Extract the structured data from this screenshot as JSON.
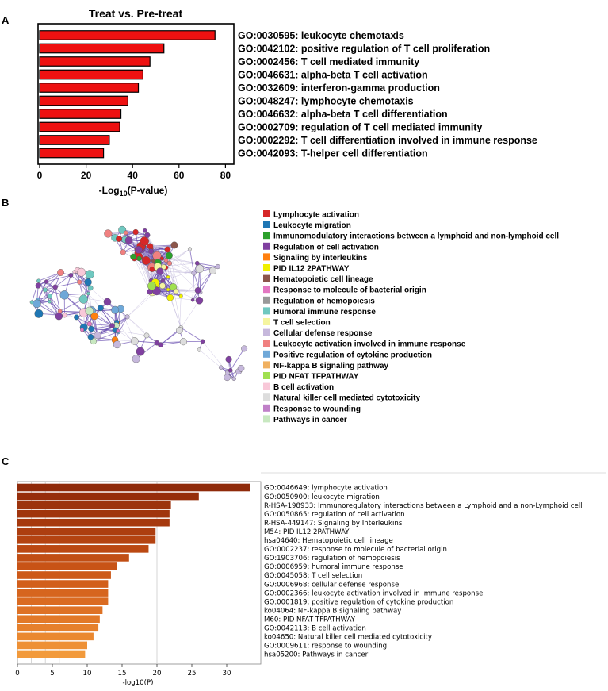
{
  "panels": {
    "a": "A",
    "b": "B",
    "c": "C"
  },
  "chart_data": [
    {
      "type": "bar",
      "orientation": "horizontal",
      "title": "Treat vs. Pre-treat",
      "xlabel": "-Log10(P-value)",
      "xlim": [
        0,
        85
      ],
      "xticks": [
        0,
        20,
        40,
        60,
        80
      ],
      "bar_color": "#ee1111",
      "categories": [
        "GO:0030595: leukocyte chemotaxis",
        "GO:0042102: positive regulation of T cell proliferation",
        "GO:0002456: T cell mediated immunity",
        "GO:0046631: alpha-beta T cell activation",
        "GO:0032609: interferon-gamma production",
        "GO:0048247: lymphocyte chemotaxis",
        "GO:0046632: alpha-beta T cell differentiation",
        "GO:0002709: regulation of T cell mediated immunity",
        "GO:0002292: T cell differentiation involved in immune response",
        "GO:0042093: T-helper cell differentiation"
      ],
      "values": [
        75.5,
        53.5,
        47.5,
        44.5,
        42.5,
        38.0,
        35.0,
        34.5,
        30.0,
        27.5
      ]
    },
    {
      "type": "network",
      "legend": [
        {
          "label": "Lymphocyte activation",
          "color": "#d62728"
        },
        {
          "label": "Leukocyte migration",
          "color": "#1f77b4"
        },
        {
          "label": "Immunomodulatory interactions between a lymphoid and non-lymphoid cell",
          "color": "#2ca02c"
        },
        {
          "label": "Regulation of cell activation",
          "color": "#8040a0"
        },
        {
          "label": "Signaling by interleukins",
          "color": "#ff7f0e"
        },
        {
          "label": "PID IL12 2PATHWAY",
          "color": "#f0f000"
        },
        {
          "label": "Hematopoietic cell lineage",
          "color": "#8c564b"
        },
        {
          "label": "Response to molecule of bacterial origin",
          "color": "#e377c2"
        },
        {
          "label": "Regulation of hemopoiesis",
          "color": "#999999"
        },
        {
          "label": "Humoral immune response",
          "color": "#6fc8c0"
        },
        {
          "label": "T cell selection",
          "color": "#f5f5a0"
        },
        {
          "label": "Cellular defense response",
          "color": "#c6b8dc"
        },
        {
          "label": "Leukocyte activation involved in immune response",
          "color": "#f08080"
        },
        {
          "label": "Positive regulation of cytokine production",
          "color": "#6fa8d8"
        },
        {
          "label": "NF-kappa B signaling pathway",
          "color": "#f0b060"
        },
        {
          "label": "PID NFAT TFPATHWAY",
          "color": "#a0e050"
        },
        {
          "label": "B cell activation",
          "color": "#f8c8d8"
        },
        {
          "label": "Natural killer cell mediated cytotoxicity",
          "color": "#dddddd"
        },
        {
          "label": "Response to wounding",
          "color": "#c080c8"
        },
        {
          "label": "Pathways in cancer",
          "color": "#c8e8c0"
        }
      ]
    },
    {
      "type": "bar",
      "orientation": "horizontal",
      "xlabel": "-log10(P)",
      "xlim": [
        0,
        34.5
      ],
      "xticks": [
        0,
        5,
        10,
        15,
        20,
        25,
        30
      ],
      "categories": [
        "GO:0046649: lymphocyte activation",
        "GO:0050900: leukocyte migration",
        "R-HSA-198933: Immunoregulatory interactions between a Lymphoid and a non-Lymphoid cell",
        "GO:0050865: regulation of cell activation",
        "R-HSA-449147: Signaling by Interleukins",
        "M54: PID IL12 2PATHWAY",
        "hsa04640: Hematopoietic cell lineage",
        "GO:0002237: response to molecule of bacterial origin",
        "GO:1903706: regulation of hemopoiesis",
        "GO:0006959: humoral immune response",
        "GO:0045058: T cell selection",
        "GO:0006968: cellular defense response",
        "GO:0002366: leukocyte activation involved in immune response",
        "GO:0001819: positive regulation of cytokine production",
        "ko04064: NF-kappa B signaling pathway",
        "M60: PID NFAT TFPATHWAY",
        "GO:0042113: B cell activation",
        "ko04650: Natural killer cell mediated cytotoxicity",
        "GO:0009611: response to wounding",
        "hsa05200: Pathways in cancer"
      ],
      "values": [
        33.3,
        26.0,
        22.0,
        21.8,
        21.8,
        19.8,
        19.8,
        18.8,
        16.0,
        14.3,
        13.4,
        13.0,
        13.0,
        13.0,
        12.2,
        11.8,
        11.6,
        10.9,
        10.0,
        9.7
      ],
      "bar_colors": [
        "#8f2a0a",
        "#962e0b",
        "#9c330c",
        "#a0350d",
        "#a6390e",
        "#ad3e10",
        "#b44311",
        "#bb4812",
        "#c14e14",
        "#c85316",
        "#cd5918",
        "#d25f1b",
        "#d6651e",
        "#da6b21",
        "#de7225",
        "#e27928",
        "#e6802c",
        "#ea8830",
        "#ee9035",
        "#f29a3b"
      ]
    }
  ]
}
